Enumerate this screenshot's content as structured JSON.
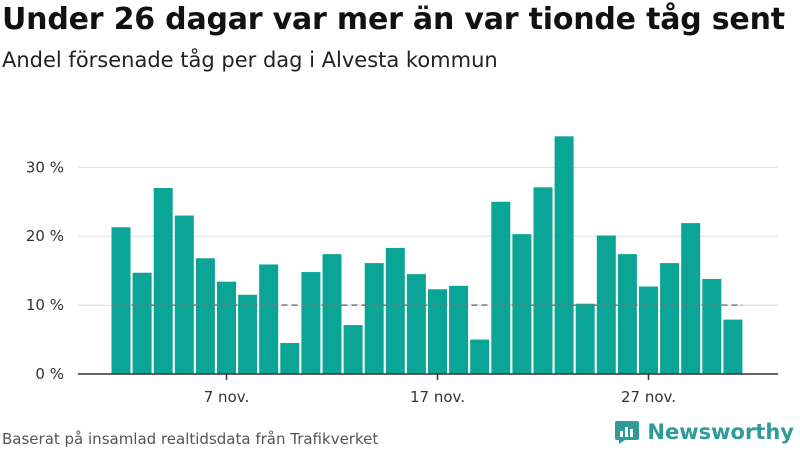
{
  "header": {
    "title": "Under 26 dagar var mer än var tionde tåg sent",
    "subtitle": "Andel försenade tåg per dag i Alvesta kommun"
  },
  "footer": {
    "source": "Baserat på insamlad realtidsdata från Trafikverket",
    "brand": "Newsworthy"
  },
  "colors": {
    "bar": "#0aa596",
    "reference_line": "#777777",
    "gridline": "#dddddd",
    "axis": "#333333",
    "brand": "#2e9b98"
  },
  "chart_data": {
    "type": "bar",
    "title": "Under 26 dagar var mer än var tionde tåg sent",
    "subtitle": "Andel försenade tåg per dag i Alvesta kommun",
    "xlabel": "",
    "ylabel": "",
    "x": [
      "2023-11-02",
      "2023-11-03",
      "2023-11-04",
      "2023-11-05",
      "2023-11-06",
      "2023-11-07",
      "2023-11-08",
      "2023-11-09",
      "2023-11-10",
      "2023-11-11",
      "2023-11-12",
      "2023-11-13",
      "2023-11-14",
      "2023-11-15",
      "2023-11-16",
      "2023-11-17",
      "2023-11-18",
      "2023-11-19",
      "2023-11-20",
      "2023-11-21",
      "2023-11-22",
      "2023-11-23",
      "2023-11-24",
      "2023-11-25",
      "2023-11-26",
      "2023-11-27",
      "2023-11-28",
      "2023-11-29",
      "2023-11-30",
      "2023-12-01"
    ],
    "values": [
      21.3,
      14.7,
      27.0,
      23.0,
      16.8,
      13.4,
      11.5,
      15.9,
      4.5,
      14.8,
      17.4,
      7.1,
      16.1,
      18.3,
      14.5,
      12.3,
      12.8,
      5.0,
      25.0,
      20.3,
      27.1,
      34.5,
      10.2,
      20.1,
      17.4,
      12.7,
      16.1,
      21.9,
      13.8,
      7.9
    ],
    "x_ticks": [
      {
        "date": "2023-11-07",
        "label": "7 nov."
      },
      {
        "date": "2023-11-17",
        "label": "17 nov."
      },
      {
        "date": "2023-11-27",
        "label": "27 nov."
      }
    ],
    "y_ticks": [
      {
        "value": 0,
        "label": "0 %"
      },
      {
        "value": 10,
        "label": "10 %"
      },
      {
        "value": 20,
        "label": "20 %"
      },
      {
        "value": 30,
        "label": "30 %"
      }
    ],
    "ylim": [
      0,
      36
    ],
    "reference_line": 10,
    "grid": true
  }
}
